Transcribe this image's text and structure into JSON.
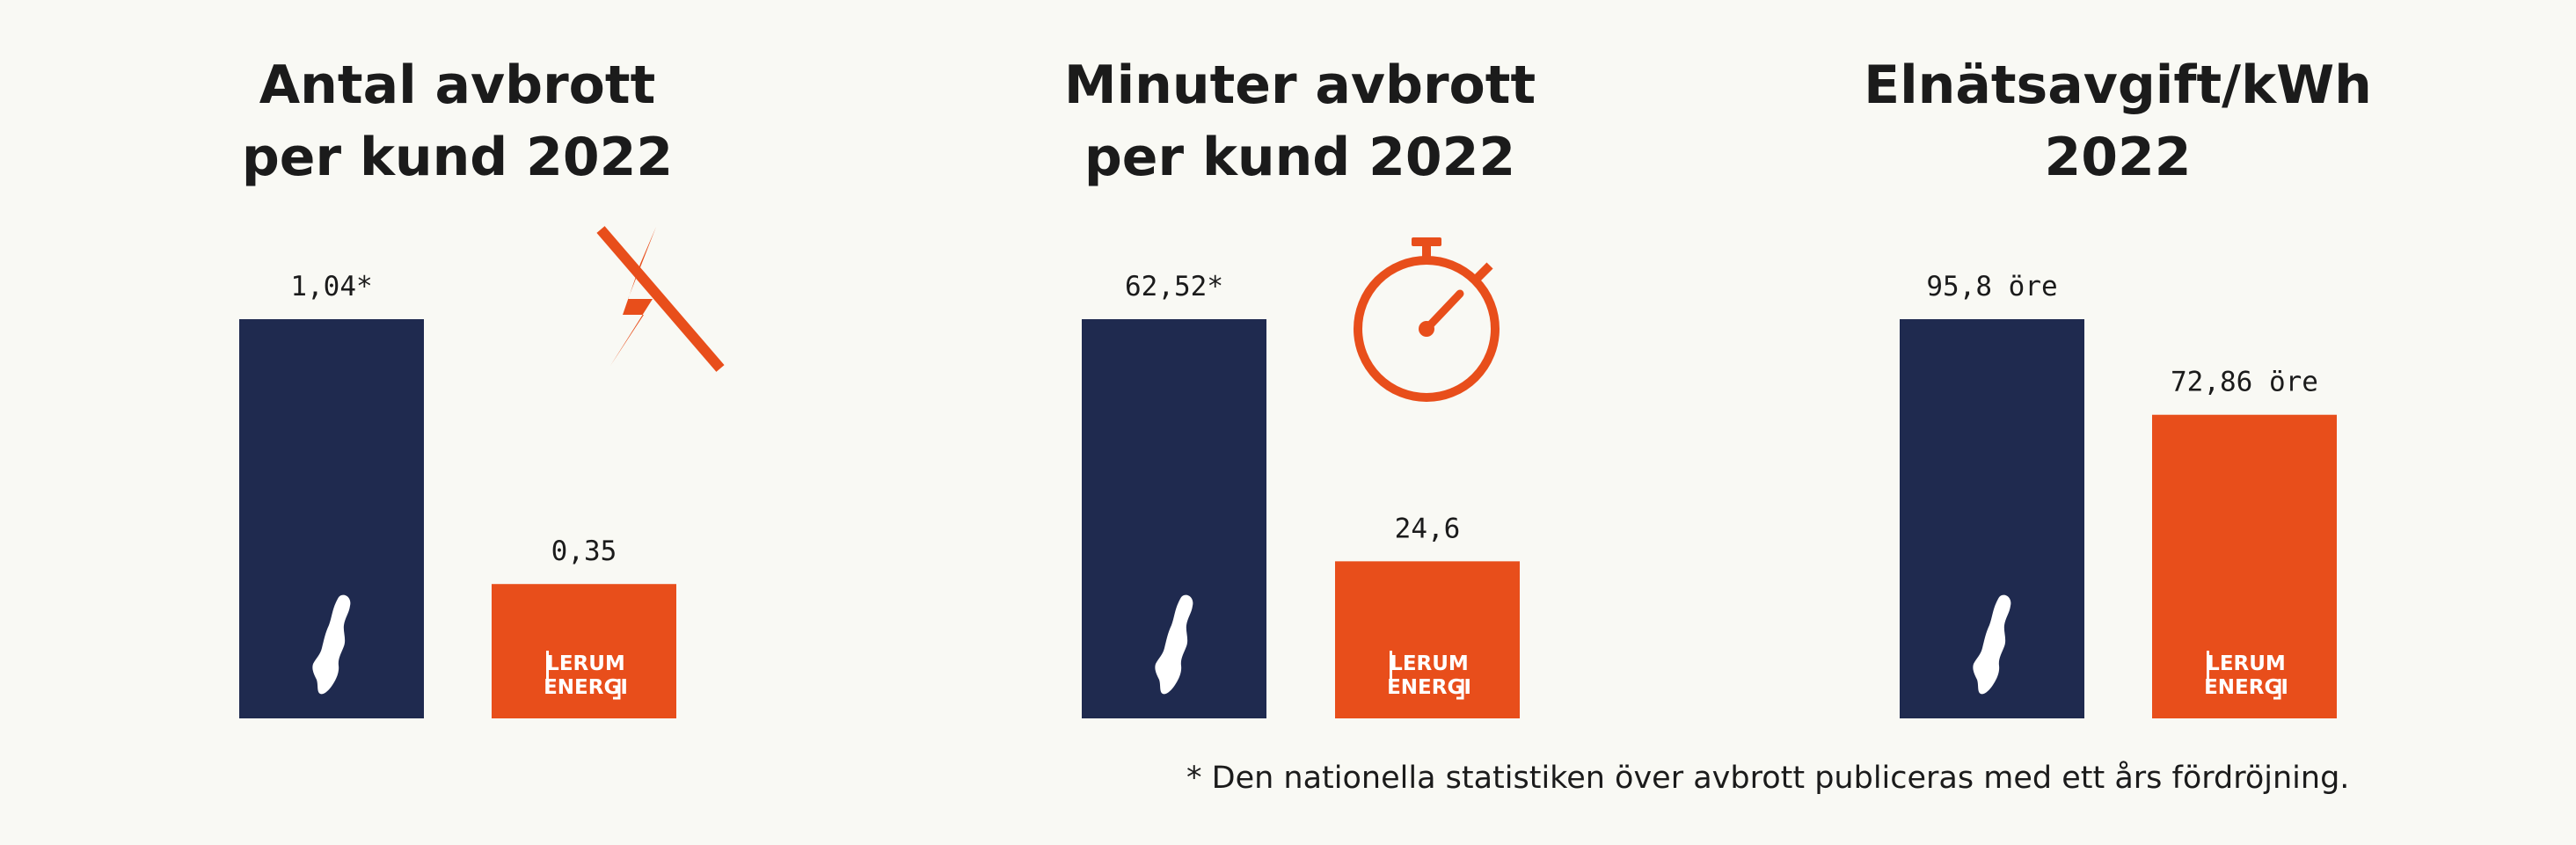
{
  "colors": {
    "background": "#f9f9f4",
    "sweden": "#1f2a4f",
    "lerum": "#e84e1b",
    "text": "#1b1b1b"
  },
  "icons": [
    "no-power-icon",
    "stopwatch-icon",
    "sweden-map-icon",
    "lerum-energi-logo"
  ],
  "logo": {
    "line1": "LERUM",
    "line2": "ENERGI"
  },
  "footnote": "* Den nationella statistiken över avbrott publiceras med ett års fördröjning.",
  "chart_data": [
    {
      "type": "bar",
      "title": [
        "Antal avbrott",
        "per kund 2022"
      ],
      "categories": [
        "Sverige",
        "Lerum Energi"
      ],
      "values": [
        1.04,
        0.35
      ],
      "labels": [
        "1,04*",
        "0,35"
      ],
      "icon": "no-power-icon",
      "ylim": [
        0,
        1.04
      ],
      "grid": false
    },
    {
      "type": "bar",
      "title": [
        "Minuter avbrott",
        "per kund 2022"
      ],
      "categories": [
        "Sverige",
        "Lerum Energi"
      ],
      "values": [
        62.52,
        24.6
      ],
      "labels": [
        "62,52*",
        "24,6"
      ],
      "icon": "stopwatch-icon",
      "ylim": [
        0,
        62.52
      ],
      "grid": false
    },
    {
      "type": "bar",
      "title": [
        "Elnätsavgift/kWh",
        "2022"
      ],
      "categories": [
        "Sverige",
        "Lerum Energi"
      ],
      "values": [
        95.8,
        72.86
      ],
      "labels": [
        "95,8 öre",
        "72,86 öre"
      ],
      "icon": null,
      "ylim": [
        0,
        95.8
      ],
      "grid": false
    }
  ]
}
